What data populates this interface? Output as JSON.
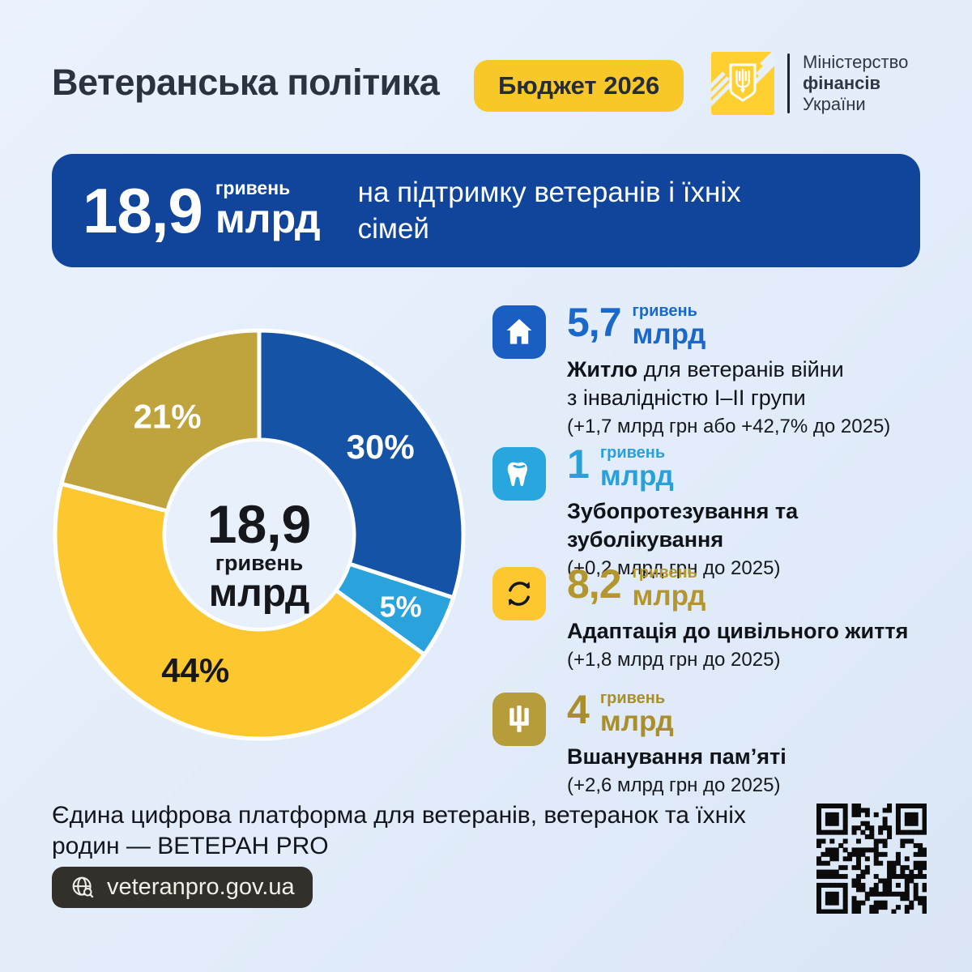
{
  "header": {
    "title": "Ветеранська політика",
    "badge": "Бюджет 2026",
    "ministry": {
      "line1": "Міністерство",
      "line2": "фінансів",
      "line3": "України"
    }
  },
  "banner": {
    "amount": "18,9",
    "unit_top": "гривень",
    "unit_bottom": "млрд",
    "description_lines": [
      "на підтримку ветеранів і їхніх",
      "сімей"
    ]
  },
  "chart_data": {
    "type": "pie",
    "donut": true,
    "start_angle_deg": 0,
    "clockwise": true,
    "center_label": {
      "value": "18,9",
      "unit_top": "гривень",
      "unit_bottom": "млрд"
    },
    "slices": [
      {
        "category": "Житло для ветеранів війни з інвалідністю І–ІІ групи",
        "percent": 30,
        "amount_bln_uah": 5.7,
        "color": "#1553a6",
        "label": "30%",
        "label_color": "#ffffff",
        "label_radius": 185,
        "label_size": 42
      },
      {
        "category": "Зубопротезування та зуболікування",
        "percent": 5,
        "amount_bln_uah": 1,
        "color": "#2aa3dc",
        "label": "5%",
        "label_color": "#ffffff",
        "label_radius": 196,
        "label_size": 36
      },
      {
        "category": "Адаптація до цивільного життя",
        "percent": 44,
        "amount_bln_uah": 8.2,
        "color": "#fcc72f",
        "label": "44%",
        "label_color": "#16181c",
        "label_radius": 185,
        "label_size": 42
      },
      {
        "category": "Вшанування пам’яті",
        "percent": 21,
        "amount_bln_uah": 4,
        "color": "#bfa33c",
        "label": "21%",
        "label_color": "#ffffff",
        "label_radius": 185,
        "label_size": 42
      }
    ]
  },
  "items": [
    {
      "icon": "house-icon",
      "icon_bg": "#1a5ec2",
      "accent": "#1b68cb",
      "amount": "5,7",
      "unit_top": "гривень",
      "unit_bottom": "млрд",
      "title_segments": [
        {
          "t": "Житло",
          "b": true
        },
        {
          "t": " для ветеранів війни\nз інвалідністю І–ІІ групи",
          "b": false
        }
      ],
      "note": "(+1,7 млрд грн або +42,7% до 2025)"
    },
    {
      "icon": "tooth-icon",
      "icon_bg": "#29a6de",
      "accent": "#29a0da",
      "amount": "1",
      "unit_top": "гривень",
      "unit_bottom": "млрд",
      "title_segments": [
        {
          "t": "Зубопротезування та зуболікування",
          "b": true
        }
      ],
      "note": "(+0,2 млрд грн до 2025)"
    },
    {
      "icon": "adaptation-cycle-icon",
      "icon_bg": "#fcc72f",
      "accent": "#b3962e",
      "amount": "8,2",
      "unit_top": "гривень",
      "unit_bottom": "млрд",
      "title_segments": [
        {
          "t": "Адаптація до цивільного життя",
          "b": true
        }
      ],
      "note": "(+1,8 млрд грн до 2025)"
    },
    {
      "icon": "trident-icon",
      "icon_bg": "#b69c3a",
      "accent": "#a98f2c",
      "amount": "4",
      "unit_top": "гривень",
      "unit_bottom": "млрд",
      "title_segments": [
        {
          "t": "Вшанування пам’яті",
          "b": true
        }
      ],
      "note": "(+2,6 млрд грн до 2025)"
    }
  ],
  "footer": {
    "text_lines": [
      "Єдина цифрова платформа для ветеранів, ветеранок та їхніх",
      "родин — ВЕТЕРАН PRO"
    ],
    "url": "veteranpro.gov.ua"
  }
}
